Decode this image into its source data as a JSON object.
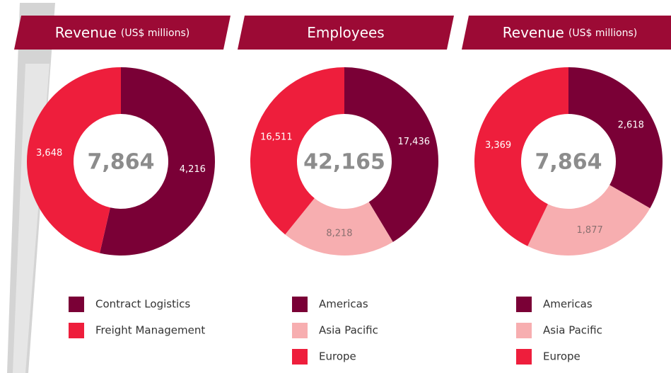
{
  "chart_data": [
    {
      "type": "donut",
      "title": "Revenue",
      "subtitle": "(US$ millions)",
      "center_label": "7,864",
      "categories": [
        "Contract Logistics",
        "Freight Management"
      ],
      "values": [
        4216,
        3648
      ],
      "value_labels": [
        "4,216",
        "3,648"
      ],
      "colors": [
        "#7a0036",
        "#ee1e3c"
      ]
    },
    {
      "type": "donut",
      "title": "Employees",
      "center_label": "42,165",
      "categories": [
        "Americas",
        "Asia Pacific",
        "Europe"
      ],
      "values": [
        17436,
        8218,
        16511
      ],
      "value_labels": [
        "17,436",
        "8,218",
        "16,511"
      ],
      "colors": [
        "#7a0036",
        "#f7aeb0",
        "#ee1e3c"
      ]
    },
    {
      "type": "donut",
      "title": "Revenue",
      "subtitle": "(US$ millions)",
      "center_label": "7,864",
      "categories": [
        "Americas",
        "Asia Pacific",
        "Europe"
      ],
      "values": [
        2618,
        1877,
        3369
      ],
      "value_labels": [
        "2,618",
        "1,877",
        "3,369"
      ],
      "colors": [
        "#7a0036",
        "#f7aeb0",
        "#ee1e3c"
      ]
    }
  ]
}
